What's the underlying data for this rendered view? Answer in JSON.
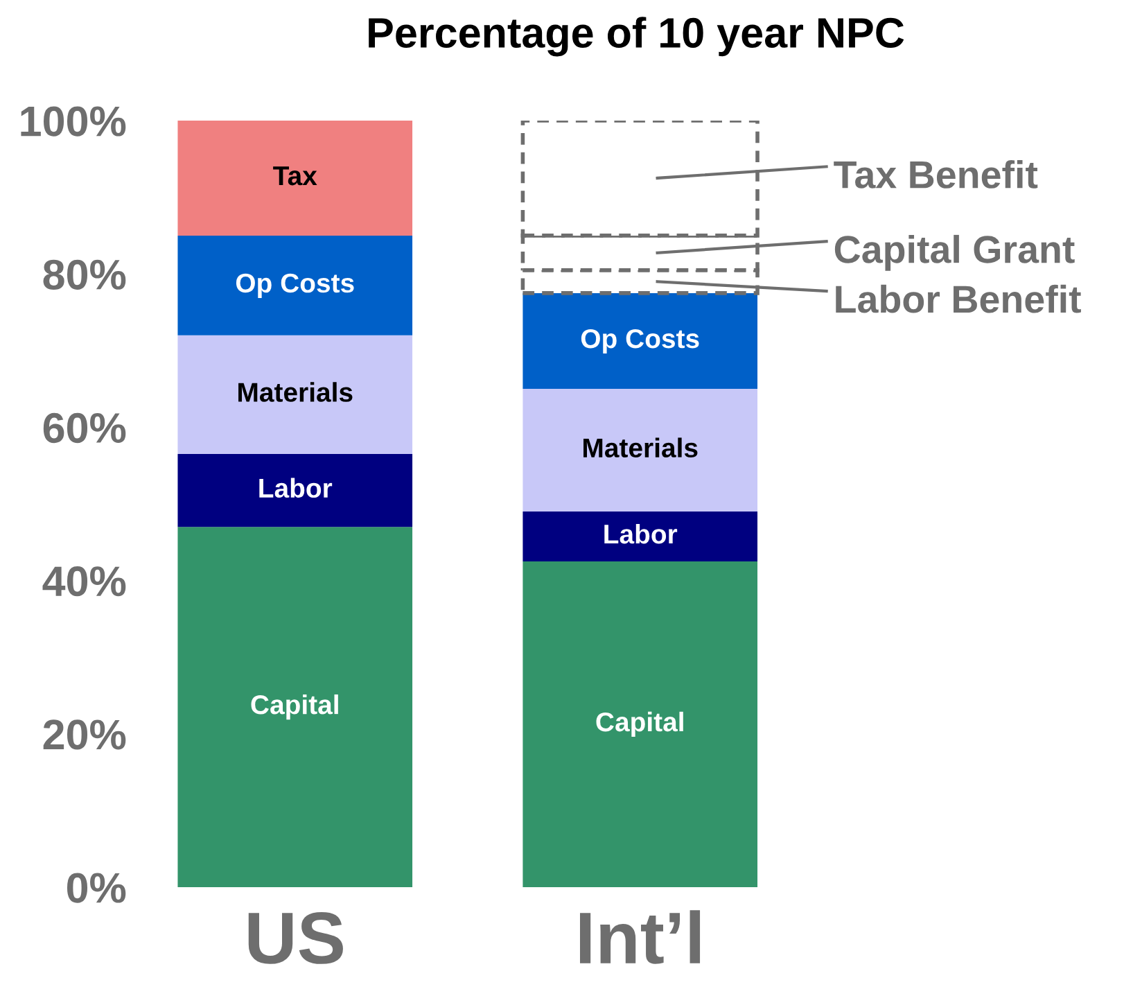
{
  "chart_data": {
    "type": "bar",
    "title": "Percentage of 10 year NPC",
    "stacked": true,
    "categories": [
      "US",
      "Int’l"
    ],
    "series": [
      {
        "name": "Capital",
        "color": "#33946a",
        "values": [
          47,
          42.5
        ]
      },
      {
        "name": "Labor",
        "color": "#000080",
        "values": [
          9.5,
          6.5
        ]
      },
      {
        "name": "Materials",
        "color": "#c8c8f8",
        "values": [
          15.5,
          16
        ]
      },
      {
        "name": "Op Costs",
        "color": "#0060c8",
        "values": [
          13,
          12.5
        ]
      },
      {
        "name": "Tax",
        "color": "#f08080",
        "values": [
          15,
          null
        ]
      },
      {
        "name": "Labor Benefit",
        "color": "#ffffff",
        "line_style": "dashed",
        "values": [
          null,
          3
        ]
      },
      {
        "name": "Capital Grant",
        "color": "#ffffff",
        "line_style": "dashed",
        "values": [
          null,
          4.5
        ]
      },
      {
        "name": "Tax Benefit",
        "color": "#ffffff",
        "line_style": "dashed",
        "values": [
          null,
          15
        ]
      }
    ],
    "ylim": [
      0,
      100
    ],
    "yticks": [
      {
        "value": 0,
        "label": "0%"
      },
      {
        "value": 20,
        "label": "20%"
      },
      {
        "value": 40,
        "label": "40%"
      },
      {
        "value": 60,
        "label": "60%"
      },
      {
        "value": 80,
        "label": "80%"
      },
      {
        "value": 100,
        "label": "100%"
      }
    ],
    "grid": false,
    "legend": "right"
  }
}
